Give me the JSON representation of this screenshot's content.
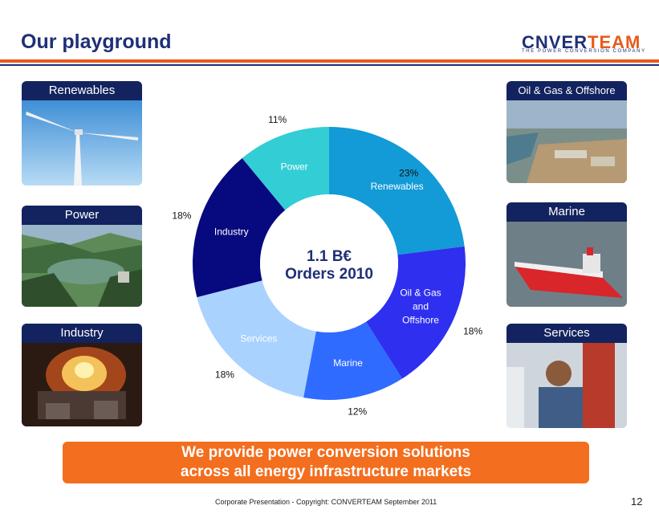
{
  "header": {
    "title": "Our playground"
  },
  "logo": {
    "word_a": "C",
    "word_mid": "NVER",
    "word_team": "TEAM",
    "tagline": "THE POWER CONVERSION COMPANY",
    "color_primary": "#1f2f78",
    "color_accent": "#e85a1a"
  },
  "cards": {
    "renewables": "Renewables",
    "power": "Power",
    "industry": "Industry",
    "oil_gas": "Oil & Gas & Offshore",
    "marine": "Marine",
    "services": "Services"
  },
  "chart_data": {
    "type": "pie",
    "donut": true,
    "center_line1": "1.1 B€",
    "center_line2": "Orders 2010",
    "slices": [
      {
        "label": "Renewables",
        "pct_label": "23%",
        "value": 23,
        "color": "#129bd6",
        "label_lines": [
          "Renewables"
        ],
        "label_color": "#ffffff"
      },
      {
        "label": "Oil & Gas and Offshore",
        "pct_label": "18%",
        "value": 18,
        "color": "#2f2ff0",
        "label_lines": [
          "Oil & Gas",
          "and",
          "Offshore"
        ],
        "label_color": "#ffffff"
      },
      {
        "label": "Marine",
        "pct_label": "12%",
        "value": 12,
        "color": "#2f6bff",
        "label_lines": [
          "Marine"
        ],
        "label_color": "#ffffff"
      },
      {
        "label": "Services",
        "pct_label": "18%",
        "value": 18,
        "color": "#a9d2ff",
        "label_lines": [
          "Services"
        ],
        "label_color": "#ffffff"
      },
      {
        "label": "Industry",
        "pct_label": "18%",
        "value": 18,
        "color": "#07097f",
        "label_lines": [
          "Industry"
        ],
        "label_color": "#ffffff"
      },
      {
        "label": "Power",
        "pct_label": "11%",
        "value": 11,
        "color": "#33cdd6",
        "label_lines": [
          "Power"
        ],
        "label_color": "#ffffff"
      }
    ]
  },
  "banner": {
    "line1": "We provide power conversion solutions",
    "line2": "across all energy infrastructure markets",
    "color": "#f36e1e"
  },
  "footer": {
    "text": "Corporate Presentation - Copyright: CONVERTEAM September 2011",
    "page": "12"
  }
}
